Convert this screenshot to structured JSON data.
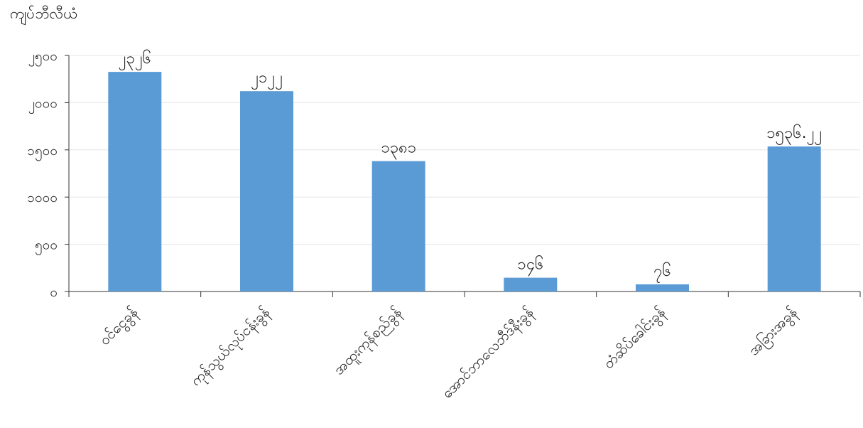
{
  "chart_data": {
    "type": "bar",
    "ylabel": "ကျပ်ဘီလီယံ",
    "categories": [
      "ဝင်ငွေခွန်",
      "ကုန်သွယ်လုပ်ငန်းခွန်",
      "အထူးကုန်စည်ခွန်",
      "အောင်ဘာလေဘီဒ်နီးခွန်",
      "တံဆိပ်ခေါင်းခွန်",
      "အခြားအခွန်"
    ],
    "values": [
      2326,
      2122,
      1381,
      146,
      76,
      1536.22
    ],
    "value_labels": [
      "၂၃၂၆",
      "၂၁၂၂",
      "၁၃၈၁",
      "၁၄၆",
      "၇၆",
      "၁၅၃၆.၂၂"
    ],
    "ylim": [
      0,
      2500
    ],
    "yticks": [
      0,
      500,
      1000,
      1500,
      2000,
      2500
    ],
    "ytick_labels": [
      "၀",
      "၅၀၀",
      "၁၀၀၀",
      "၁၅၀၀",
      "၂၀၀၀",
      "၂၅၀၀"
    ],
    "bar_color": "#5b9bd5",
    "grid": true,
    "legend": "none"
  }
}
